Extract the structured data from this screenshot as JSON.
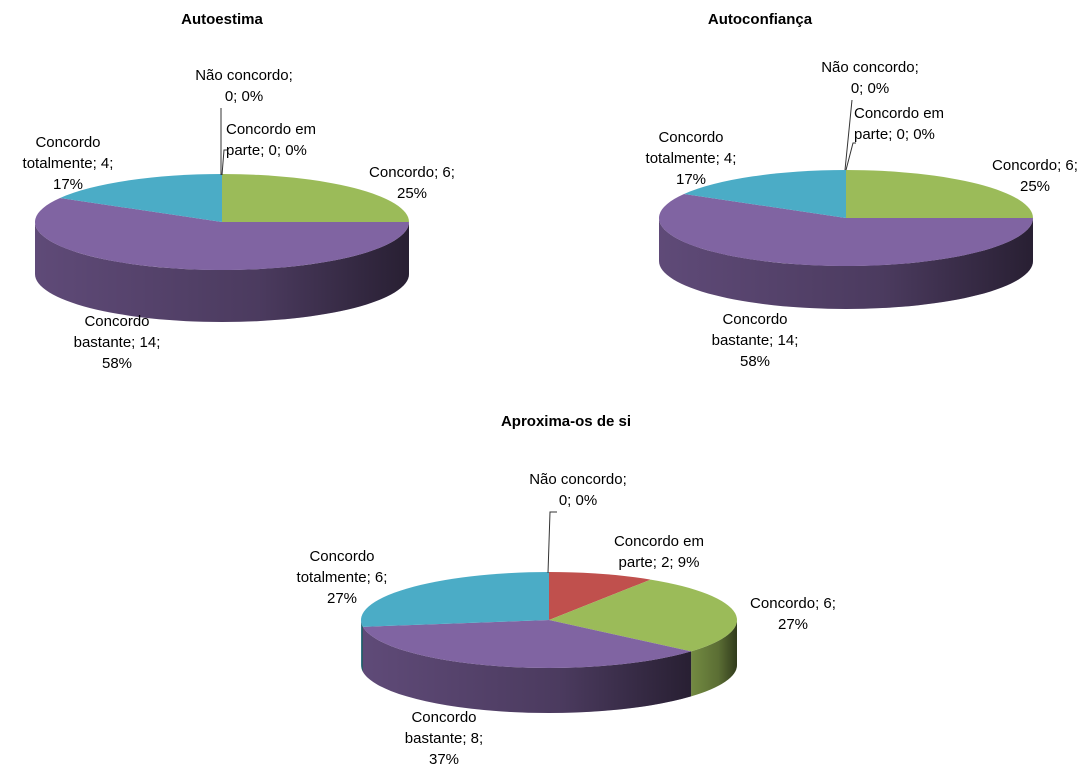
{
  "chart_data": [
    {
      "type": "pie",
      "title": "Autoestima",
      "slices": [
        {
          "label": "Concordo em parte",
          "value": 0,
          "percent": "0%",
          "color": "#c0504d",
          "label_lines": [
            "Concordo em",
            "parte; 0; 0%"
          ]
        },
        {
          "label": "Concordo",
          "value": 6,
          "percent": "25%",
          "color": "#9bbb59",
          "label_lines": [
            "Concordo; 6;",
            "25%"
          ]
        },
        {
          "label": "Concordo bastante",
          "value": 14,
          "percent": "58%",
          "color": "#8064a2",
          "label_lines": [
            "Concordo",
            "bastante; 14;",
            "58%"
          ]
        },
        {
          "label": "Concordo totalmente",
          "value": 4,
          "percent": "17%",
          "color": "#4bacc6",
          "label_lines": [
            "Concordo",
            "totalmente; 4;",
            "17%"
          ]
        },
        {
          "label": "Não concordo",
          "value": 0,
          "percent": "0%",
          "color": "#4f81bd",
          "label_lines": [
            "Não concordo;",
            "0; 0%"
          ]
        }
      ]
    },
    {
      "type": "pie",
      "title": "Autoconfiança",
      "slices": [
        {
          "label": "Concordo em parte",
          "value": 0,
          "percent": "0%",
          "color": "#c0504d",
          "label_lines": [
            "Concordo em",
            "parte; 0; 0%"
          ]
        },
        {
          "label": "Concordo",
          "value": 6,
          "percent": "25%",
          "color": "#9bbb59",
          "label_lines": [
            "Concordo; 6;",
            "25%"
          ]
        },
        {
          "label": "Concordo bastante",
          "value": 14,
          "percent": "58%",
          "color": "#8064a2",
          "label_lines": [
            "Concordo",
            "bastante; 14;",
            "58%"
          ]
        },
        {
          "label": "Concordo totalmente",
          "value": 4,
          "percent": "17%",
          "color": "#4bacc6",
          "label_lines": [
            "Concordo",
            "totalmente; 4;",
            "17%"
          ]
        },
        {
          "label": "Não concordo",
          "value": 0,
          "percent": "0%",
          "color": "#4f81bd",
          "label_lines": [
            "Não concordo;",
            "0; 0%"
          ]
        }
      ]
    },
    {
      "type": "pie",
      "title": "Aproxima-os de si",
      "slices": [
        {
          "label": "Concordo em parte",
          "value": 2,
          "percent": "9%",
          "color": "#c0504d",
          "label_lines": [
            "Concordo em",
            "parte; 2; 9%"
          ]
        },
        {
          "label": "Concordo",
          "value": 6,
          "percent": "27%",
          "color": "#9bbb59",
          "label_lines": [
            "Concordo; 6;",
            "27%"
          ]
        },
        {
          "label": "Concordo bastante",
          "value": 8,
          "percent": "37%",
          "color": "#8064a2",
          "label_lines": [
            "Concordo",
            "bastante; 8;",
            "37%"
          ]
        },
        {
          "label": "Concordo totalmente",
          "value": 6,
          "percent": "27%",
          "color": "#4bacc6",
          "label_lines": [
            "Concordo",
            "totalmente; 6;",
            "27%"
          ]
        },
        {
          "label": "Não concordo",
          "value": 0,
          "percent": "0%",
          "color": "#4f81bd",
          "label_lines": [
            "Não concordo;",
            "0; 0%"
          ]
        }
      ]
    }
  ]
}
